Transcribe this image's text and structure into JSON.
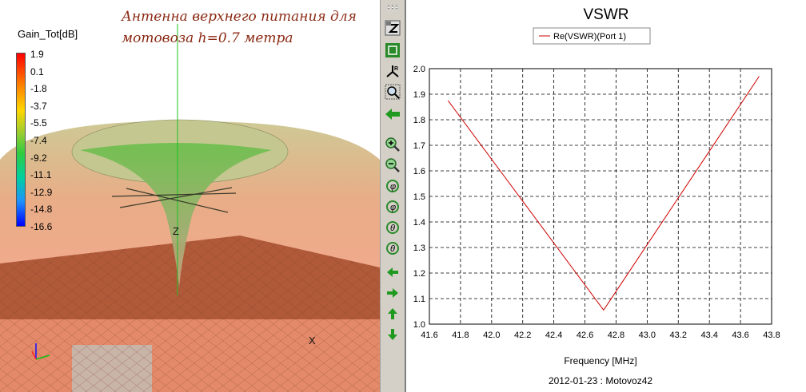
{
  "antenna_view": {
    "colorbar_title": "Gain_Tot[dB]",
    "colorbar_ticks": [
      "1.9",
      "0.1",
      "-1.8",
      "-3.7",
      "-5.5",
      "-7.4",
      "-9.2",
      "-11.1",
      "-12.9",
      "-14.8",
      "-16.6"
    ],
    "annotation_line1": "Антенна верхнего питания для",
    "annotation_line2": "мотовоза h=0.7 метра",
    "axis_z": "Z",
    "axis_x": "X",
    "colors": {
      "pattern": "#e8a078",
      "ground": "#b0502e",
      "beam": "#5fa85a",
      "annotation": "#8b2a14"
    }
  },
  "toolbar": {
    "buttons": [
      {
        "name": "toggle-z-icon"
      },
      {
        "name": "fit-all-icon"
      },
      {
        "name": "axis-orient-icon"
      },
      {
        "name": "zoom-window-icon"
      },
      {
        "name": "back-arrow-icon"
      },
      {
        "name": "zoom-in-icon"
      },
      {
        "name": "zoom-out-icon"
      },
      {
        "name": "rotate-phi-plus-icon"
      },
      {
        "name": "rotate-phi-minus-icon"
      },
      {
        "name": "rotate-theta-plus-icon"
      },
      {
        "name": "rotate-theta-minus-icon"
      },
      {
        "name": "pan-left-icon"
      },
      {
        "name": "pan-right-icon"
      },
      {
        "name": "pan-up-icon"
      },
      {
        "name": "pan-down-icon"
      }
    ]
  },
  "chart_data": {
    "type": "line",
    "title": "VSWR",
    "xlabel": "Frequency [MHz]",
    "ylabel": "",
    "footer": "2012-01-23 : Motovoz42",
    "xlim": [
      41.6,
      43.8
    ],
    "ylim": [
      1.0,
      2.0
    ],
    "xticks": [
      "41.6",
      "41.8",
      "42.0",
      "42.2",
      "42.4",
      "42.6",
      "42.8",
      "43.0",
      "43.2",
      "43.4",
      "43.6",
      "43.8"
    ],
    "yticks": [
      "1.0",
      "1.1",
      "1.2",
      "1.3",
      "1.4",
      "1.5",
      "1.6",
      "1.7",
      "1.8",
      "1.9",
      "2.0"
    ],
    "grid": true,
    "legend_position": "top-center",
    "series": [
      {
        "name": "Re(VSWR)(Port 1)",
        "color": "#cc0000",
        "x": [
          41.72,
          42.72,
          43.72
        ],
        "y": [
          1.875,
          1.055,
          1.97
        ]
      }
    ]
  }
}
